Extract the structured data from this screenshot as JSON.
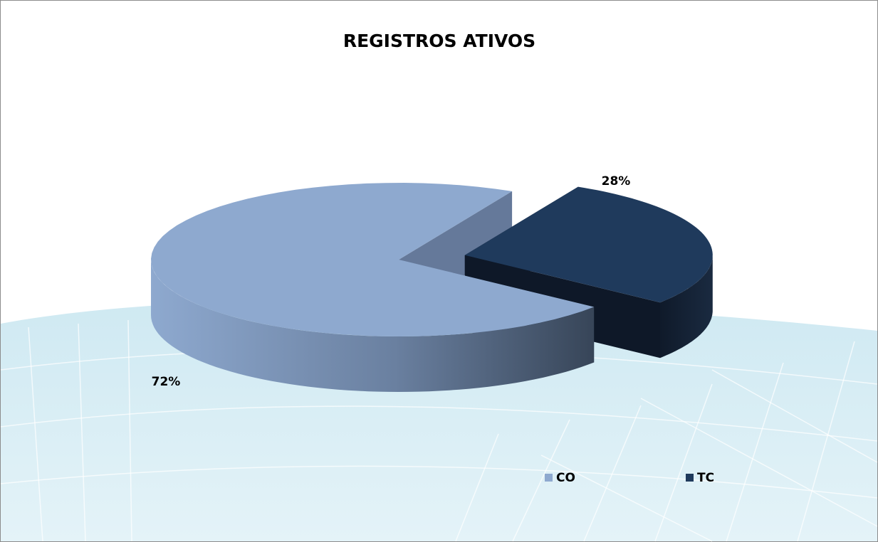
{
  "chart_data": {
    "type": "pie",
    "title": "REGISTROS ATIVOS",
    "categories": [
      "CO",
      "TC"
    ],
    "values": [
      72,
      28
    ],
    "value_labels": [
      "72%",
      "28%"
    ],
    "colors": [
      "#8ea9cf",
      "#1f3a5c"
    ]
  }
}
